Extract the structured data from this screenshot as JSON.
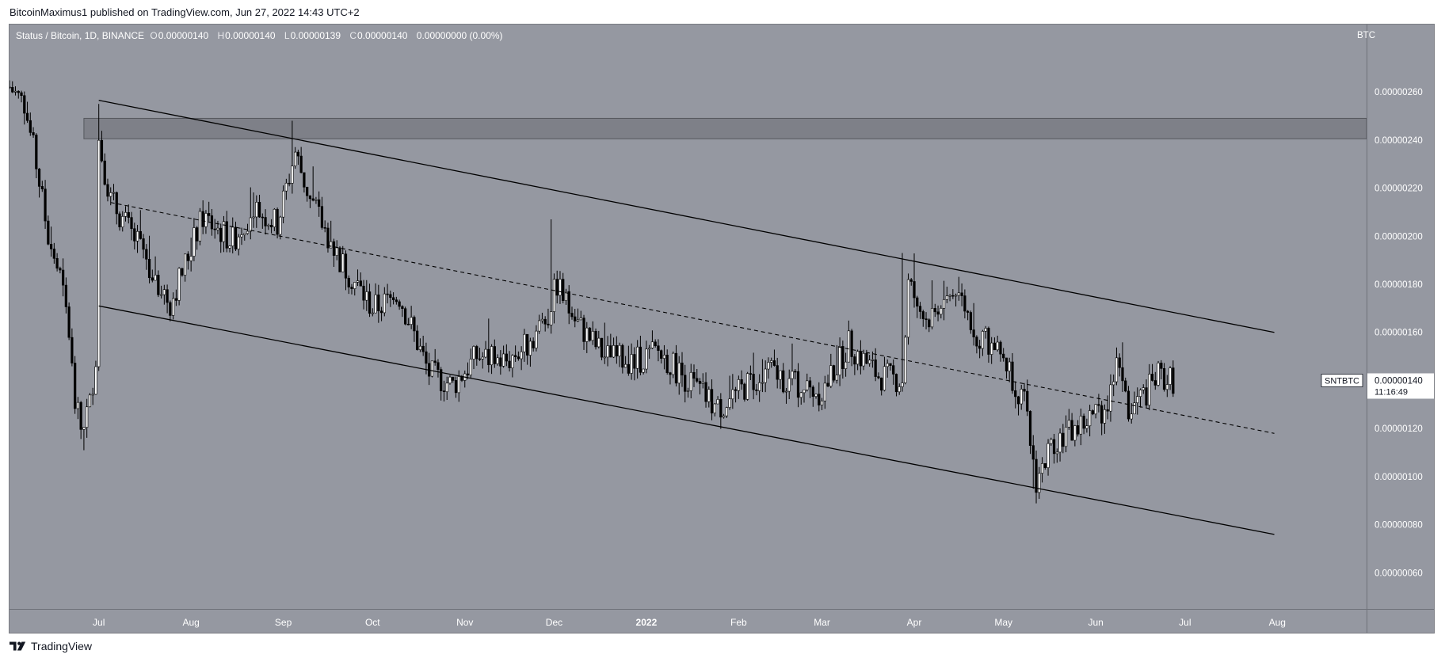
{
  "header": {
    "published": "BitcoinMaximus1 published on TradingView.com, Jun 27, 2022 14:43 UTC+2"
  },
  "legend": {
    "symbol": "Status / Bitcoin, 1D, BINANCE",
    "o_label": "O",
    "o": "0.00000140",
    "h_label": "H",
    "h": "0.00000140",
    "l_label": "L",
    "l": "0.00000139",
    "c_label": "C",
    "c": "0.00000140",
    "change": "0.00000000 (0.00%)"
  },
  "price_axis": {
    "currency": "BTC",
    "ticks": [
      "0.00000260",
      "0.00000240",
      "0.00000220",
      "0.00000200",
      "0.00000180",
      "0.00000160",
      "0.00000140",
      "0.00000120",
      "0.00000100",
      "0.00000080",
      "0.00000060"
    ]
  },
  "current_price": {
    "ticker": "SNTBTC",
    "price": "0.00000140",
    "countdown": "11:16:49"
  },
  "time_axis": {
    "labels": [
      "Jul",
      "Aug",
      "Sep",
      "Oct",
      "Nov",
      "Dec",
      "2022",
      "Feb",
      "Mar",
      "Apr",
      "May",
      "Jun",
      "Jul",
      "Aug"
    ]
  },
  "footer": {
    "brand": "TradingView"
  },
  "colors": {
    "background": "#9598a1",
    "candle": "#ffffff",
    "candle_outline": "#000000",
    "trendline": "#000000",
    "resistance_zone": "#6b6e75"
  },
  "chart_data": {
    "type": "candlestick",
    "title": "Status / Bitcoin, 1D, BINANCE",
    "xlabel": "",
    "ylabel": "BTC",
    "ylim": [
      4.5e-07,
      2.88e-06
    ],
    "x_range": [
      "2021-06-01",
      "2022-08-31"
    ],
    "grid": false,
    "resistance_zone": {
      "from": 2.405e-06,
      "to": 2.49e-06
    },
    "channel": {
      "upper": [
        [
          "2021-07-01",
          2.565e-06
        ],
        [
          "2022-07-31",
          1.6e-06
        ]
      ],
      "lower": [
        [
          "2021-07-01",
          1.71e-06
        ],
        [
          "2022-07-31",
          7.6e-07
        ]
      ],
      "middle_dashed": [
        [
          "2021-07-05",
          2.14e-06
        ],
        [
          "2022-07-31",
          1.18e-06
        ]
      ]
    },
    "close_path": [
      [
        "2021-06-01",
        2.62e-06
      ],
      [
        "2021-06-06",
        2.55e-06
      ],
      [
        "2021-06-10",
        2.3e-06
      ],
      [
        "2021-06-14",
        2e-06
      ],
      [
        "2021-06-18",
        1.83e-06
      ],
      [
        "2021-06-21",
        1.6e-06
      ],
      [
        "2021-06-23",
        1.3e-06
      ],
      [
        "2021-06-25",
        1.2e-06
      ],
      [
        "2021-06-28",
        1.3e-06
      ],
      [
        "2021-06-30",
        1.5e-06
      ],
      [
        "2021-07-01",
        2.4e-06
      ],
      [
        "2021-07-05",
        2.15e-06
      ],
      [
        "2021-07-15",
        1.95e-06
      ],
      [
        "2021-07-25",
        1.72e-06
      ],
      [
        "2021-08-05",
        2.08e-06
      ],
      [
        "2021-08-15",
        1.98e-06
      ],
      [
        "2021-08-22",
        2.12e-06
      ],
      [
        "2021-08-30",
        2.05e-06
      ],
      [
        "2021-09-05",
        2.35e-06
      ],
      [
        "2021-09-10",
        2.15e-06
      ],
      [
        "2021-09-20",
        1.9e-06
      ],
      [
        "2021-10-01",
        1.7e-06
      ],
      [
        "2021-10-10",
        1.75e-06
      ],
      [
        "2021-10-20",
        1.43e-06
      ],
      [
        "2021-10-28",
        1.38e-06
      ],
      [
        "2021-11-05",
        1.5e-06
      ],
      [
        "2021-11-15",
        1.48e-06
      ],
      [
        "2021-11-22",
        1.55e-06
      ],
      [
        "2021-11-28",
        1.65e-06
      ],
      [
        "2021-12-02",
        1.8e-06
      ],
      [
        "2021-12-08",
        1.65e-06
      ],
      [
        "2021-12-18",
        1.5e-06
      ],
      [
        "2021-12-28",
        1.48e-06
      ],
      [
        "2022-01-05",
        1.52e-06
      ],
      [
        "2022-01-15",
        1.4e-06
      ],
      [
        "2022-01-25",
        1.28e-06
      ],
      [
        "2022-02-01",
        1.35e-06
      ],
      [
        "2022-02-10",
        1.45e-06
      ],
      [
        "2022-02-20",
        1.38e-06
      ],
      [
        "2022-03-01",
        1.35e-06
      ],
      [
        "2022-03-10",
        1.55e-06
      ],
      [
        "2022-03-20",
        1.42e-06
      ],
      [
        "2022-03-28",
        1.4e-06
      ],
      [
        "2022-03-30",
        1.8e-06
      ],
      [
        "2022-04-05",
        1.65e-06
      ],
      [
        "2022-04-15",
        1.78e-06
      ],
      [
        "2022-04-22",
        1.6e-06
      ],
      [
        "2022-05-01",
        1.5e-06
      ],
      [
        "2022-05-08",
        1.3e-06
      ],
      [
        "2022-05-12",
        9.8e-07
      ],
      [
        "2022-05-18",
        1.15e-06
      ],
      [
        "2022-05-28",
        1.22e-06
      ],
      [
        "2022-06-05",
        1.3e-06
      ],
      [
        "2022-06-08",
        1.45e-06
      ],
      [
        "2022-06-12",
        1.28e-06
      ],
      [
        "2022-06-18",
        1.35e-06
      ],
      [
        "2022-06-22",
        1.42e-06
      ],
      [
        "2022-06-27",
        1.4e-06
      ]
    ],
    "extreme_wicks": [
      [
        "2021-07-01",
        2.55e-06
      ],
      [
        "2021-09-04",
        2.48e-06
      ],
      [
        "2021-11-30",
        2.07e-06
      ],
      [
        "2022-03-28",
        1.93e-06
      ],
      [
        "2022-05-11",
        9.5e-07
      ],
      [
        "2021-06-26",
        1.11e-06
      ]
    ]
  }
}
